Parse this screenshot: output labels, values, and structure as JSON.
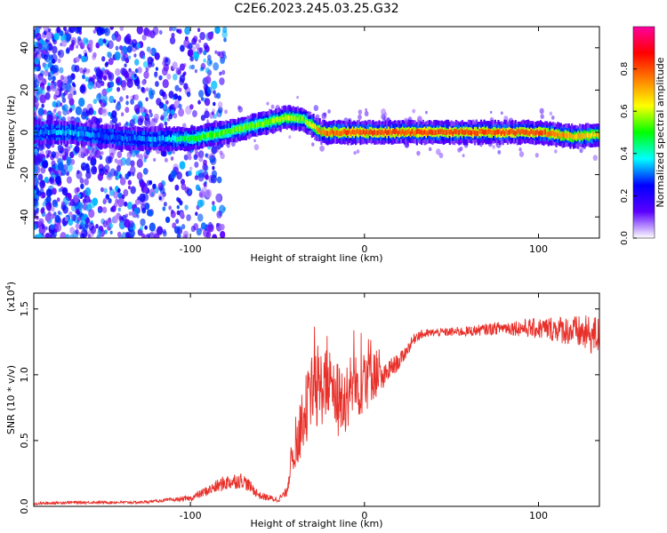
{
  "title": "C2E6.2023.245.03.25.G32",
  "chart_data": [
    {
      "type": "heatmap",
      "xlabel": "Height of straight line (km)",
      "ylabel": "Frequency (Hz)",
      "xlim": [
        -190,
        135
      ],
      "ylim": [
        -50,
        50
      ],
      "xticks": [
        -100,
        0,
        100
      ],
      "yticks": [
        -40,
        -20,
        0,
        20,
        40
      ],
      "colorbar": {
        "label": "Normalized spectral amplitude",
        "range": [
          0,
          1
        ],
        "ticks": [
          "0.0",
          "0.2",
          "0.4",
          "0.6",
          "0.8"
        ],
        "colors": [
          "#ffffff",
          "#5a00ff",
          "#0000ff",
          "#00ffff",
          "#00ff00",
          "#ffff00",
          "#ff8000",
          "#ff0000",
          "#ff00a0"
        ]
      },
      "ridge": {
        "x": [
          -190,
          -170,
          -150,
          -130,
          -115,
          -100,
          -80,
          -60,
          -45,
          -35,
          -25,
          -10,
          0,
          20,
          40,
          60,
          80,
          100,
          120,
          135
        ],
        "y": [
          0,
          0,
          -2,
          -3,
          -3,
          -3,
          0,
          4,
          7,
          6,
          0,
          0,
          0,
          0,
          0,
          0,
          0,
          0,
          -2,
          -1
        ],
        "amplitude": [
          0.3,
          0.35,
          0.3,
          0.3,
          0.35,
          0.5,
          0.55,
          0.55,
          0.6,
          0.55,
          0.75,
          0.8,
          0.8,
          0.8,
          0.8,
          0.8,
          0.8,
          0.8,
          0.7,
          0.65
        ]
      }
    },
    {
      "type": "line",
      "xlabel": "Height of straight line (km)",
      "ylabel": "SNR (10 * v/v)",
      "scale_label": "(x10",
      "scale_exponent": "4",
      "scale_close": ")",
      "xlim": [
        -190,
        135
      ],
      "ylim": [
        0,
        1.62
      ],
      "xticks": [
        -100,
        0,
        100
      ],
      "yticks": [
        "0.0",
        "0.5",
        "1.0",
        "1.5"
      ],
      "line_color": "#e8302a",
      "series": [
        {
          "x": [
            -190,
            -170,
            -150,
            -130,
            -120,
            -100,
            -90,
            -80,
            -70,
            -60,
            -50,
            -45,
            -42,
            -38,
            -35,
            -30,
            -25,
            -20,
            -15,
            -10,
            -5,
            0,
            5,
            10,
            15,
            20,
            25,
            30,
            40,
            60,
            80,
            100,
            110,
            120,
            130,
            135
          ],
          "y": [
            0.02,
            0.03,
            0.03,
            0.03,
            0.04,
            0.06,
            0.12,
            0.18,
            0.2,
            0.08,
            0.05,
            0.1,
            0.35,
            0.5,
            0.7,
            0.85,
            0.9,
            0.95,
            0.8,
            0.85,
            0.9,
            1.0,
            1.05,
            0.95,
            1.05,
            1.1,
            1.2,
            1.3,
            1.32,
            1.33,
            1.36,
            1.35,
            1.35,
            1.33,
            1.3,
            1.3
          ],
          "noise": [
            0.01,
            0.01,
            0.01,
            0.01,
            0.01,
            0.02,
            0.04,
            0.06,
            0.06,
            0.03,
            0.02,
            0.04,
            0.12,
            0.2,
            0.25,
            0.3,
            0.3,
            0.25,
            0.3,
            0.3,
            0.25,
            0.3,
            0.25,
            0.1,
            0.08,
            0.06,
            0.05,
            0.04,
            0.03,
            0.04,
            0.05,
            0.08,
            0.1,
            0.12,
            0.15,
            0.15
          ]
        }
      ]
    }
  ]
}
